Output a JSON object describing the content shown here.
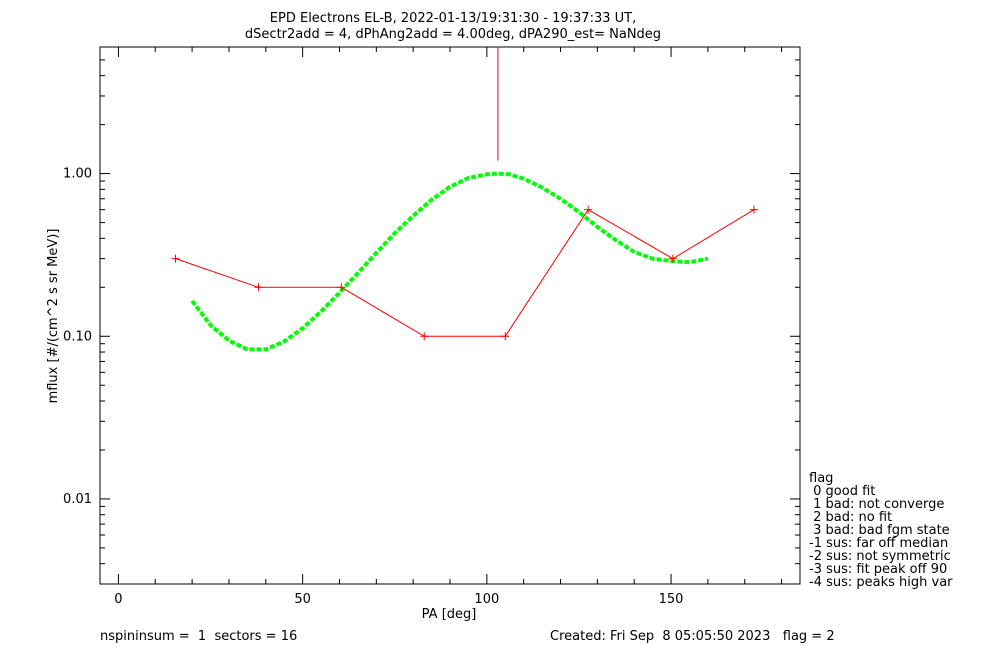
{
  "header": {
    "title_line1": "EPD Electrons EL-B, 2022-01-13/19:31:30 - 19:37:33 UT,",
    "title_line2": "dSectr2add = 4, dPhAng2add = 4.00deg, dPA290_est=    NaNdeg"
  },
  "footer": {
    "left": "nspininsum =  1  sectors = 16",
    "right": "Created: Fri Sep  8 05:05:50 2023   flag = 2"
  },
  "legend": {
    "title": "flag",
    "items": [
      " 0 good fit",
      " 1 bad: not converge",
      " 2 bad: no fit",
      " 3 bad: bad fgm state",
      "-1 sus: far off median",
      "-2 sus: not symmetric",
      "-3 sus: fit peak off 90",
      "-4 sus: peaks high var"
    ]
  },
  "colors": {
    "data": "#ff0000",
    "fit": "#00ff00",
    "axes": "#000000"
  },
  "chart_data": {
    "type": "line",
    "xlabel": "PA [deg]",
    "ylabel": "mflux [#/(cm^2 s sr MeV)]",
    "xlim": [
      -5,
      185
    ],
    "ylim": [
      0.003,
      6.0
    ],
    "yscale": "log",
    "xticks": [
      0,
      50,
      100,
      150
    ],
    "xtick_labels": [
      "0",
      "50",
      "100",
      "150"
    ],
    "yticks": [
      0.01,
      0.1,
      1.0
    ],
    "ytick_labels": [
      "0.01",
      "0.10",
      "1.00"
    ],
    "series": [
      {
        "style": "line-plus",
        "color": "#ff0000",
        "x": [
          15.5,
          38.0,
          60.5,
          83.0,
          105.0,
          127.5,
          150.5,
          172.5
        ],
        "y": [
          0.3,
          0.2,
          0.2,
          0.1,
          0.1,
          0.6,
          0.3,
          0.6
        ]
      },
      {
        "style": "dashed",
        "color": "#00ff00",
        "x": [
          20,
          25,
          30,
          35,
          40,
          45,
          50,
          55,
          60,
          65,
          70,
          75,
          80,
          85,
          90,
          95,
          100,
          103,
          106,
          110,
          115,
          120,
          125,
          130,
          135,
          140,
          145,
          150,
          155,
          160
        ],
        "y": [
          0.165,
          0.117,
          0.094,
          0.083,
          0.083,
          0.093,
          0.112,
          0.142,
          0.185,
          0.245,
          0.325,
          0.43,
          0.55,
          0.69,
          0.83,
          0.94,
          0.99,
          1.0,
          0.99,
          0.93,
          0.82,
          0.7,
          0.58,
          0.47,
          0.39,
          0.33,
          0.3,
          0.29,
          0.285,
          0.3
        ]
      },
      {
        "style": "errorbar",
        "color": "#ff0000",
        "x": [
          103.0
        ],
        "y_low": [
          1.2
        ],
        "y_high": [
          6.0
        ]
      }
    ]
  }
}
